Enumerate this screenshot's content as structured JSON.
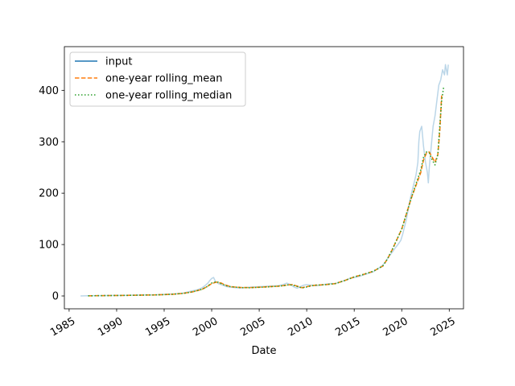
{
  "chart_data": {
    "type": "line",
    "title": "",
    "xlabel": "Date",
    "ylabel": "",
    "xlim": [
      1984.5,
      2026.5
    ],
    "ylim": [
      -25,
      485
    ],
    "x_ticks": [
      1985,
      1990,
      1995,
      2000,
      2005,
      2010,
      2015,
      2020,
      2025
    ],
    "x_tick_labels": [
      "1985",
      "1990",
      "1995",
      "2000",
      "2005",
      "2010",
      "2015",
      "2020",
      "2025"
    ],
    "y_ticks": [
      0,
      100,
      200,
      300,
      400
    ],
    "y_tick_labels": [
      "0",
      "100",
      "200",
      "300",
      "400"
    ],
    "grid": false,
    "legend_position": "top-left",
    "series": [
      {
        "name": "input",
        "color": "#1f77b4",
        "style": "solid",
        "x": [
          1986.2,
          1987,
          1988,
          1989,
          1990,
          1991,
          1992,
          1993,
          1994,
          1995,
          1996,
          1997,
          1998,
          1998.5,
          1999,
          1999.3,
          1999.6,
          1999.8,
          2000,
          2000.2,
          2000.4,
          2000.7,
          2001,
          2001.3,
          2001.6,
          2002,
          2002.5,
          2003,
          2003.5,
          2004,
          2005,
          2006,
          2007,
          2007.5,
          2007.9,
          2008.3,
          2008.7,
          2009,
          2009.3,
          2009.7,
          2010,
          2010.5,
          2011,
          2011.5,
          2012,
          2012.5,
          2013,
          2013.5,
          2014,
          2014.5,
          2015,
          2015.5,
          2016,
          2016.5,
          2017,
          2017.5,
          2018,
          2018.3,
          2018.7,
          2019,
          2019.3,
          2019.6,
          2019.9,
          2020.1,
          2020.3,
          2020.5,
          2020.7,
          2020.9,
          2021.1,
          2021.3,
          2021.5,
          2021.7,
          2021.8,
          2021.9,
          2022.1,
          2022.3,
          2022.5,
          2022.7,
          2022.8,
          2022.9,
          2023.1,
          2023.3,
          2023.5,
          2023.7,
          2023.9,
          2024.1,
          2024.3,
          2024.5,
          2024.6,
          2024.7,
          2024.8,
          2024.9
        ],
        "y": [
          0,
          0.5,
          0.6,
          0.8,
          1,
          1.2,
          1.5,
          2,
          1.9,
          3,
          4,
          5.5,
          10,
          12,
          16,
          20,
          25,
          30,
          34,
          36,
          28,
          24,
          22,
          20,
          18,
          17,
          16,
          15.5,
          16,
          17,
          18,
          19,
          20,
          22,
          25,
          22,
          17,
          15,
          18,
          21,
          22,
          21,
          20,
          21,
          23,
          24,
          24,
          27,
          30,
          34,
          36,
          38,
          41,
          44,
          47,
          53,
          60,
          67,
          78,
          85,
          93,
          100,
          108,
          120,
          135,
          150,
          170,
          190,
          205,
          220,
          235,
          260,
          300,
          320,
          330,
          290,
          260,
          240,
          220,
          250,
          290,
          330,
          350,
          380,
          410,
          420,
          440,
          430,
          450,
          440,
          430,
          450
        ]
      },
      {
        "name": "one-year rolling_mean",
        "color": "#ff7f0e",
        "style": "dashed",
        "x": [
          1987,
          1988,
          1989,
          1990,
          1991,
          1992,
          1993,
          1994,
          1995,
          1996,
          1997,
          1998,
          1999,
          1999.5,
          2000,
          2000.5,
          2001,
          2001.5,
          2002,
          2003,
          2004,
          2005,
          2006,
          2007,
          2007.5,
          2008,
          2008.5,
          2009,
          2009.5,
          2010,
          2010.5,
          2011,
          2012,
          2013,
          2014,
          2015,
          2016,
          2017,
          2018,
          2018.5,
          2019,
          2019.5,
          2020,
          2020.5,
          2021,
          2021.5,
          2022,
          2022.3,
          2022.6,
          2022.9,
          2023.2,
          2023.5,
          2023.8,
          2024,
          2024.2
        ],
        "y": [
          0.3,
          0.5,
          0.7,
          0.9,
          1.1,
          1.4,
          1.8,
          2,
          2.6,
          3.5,
          5,
          8,
          13,
          18,
          24,
          27,
          25,
          21,
          18,
          16.5,
          16.2,
          17,
          18,
          19,
          20,
          21.5,
          22,
          19,
          16,
          18,
          20,
          21,
          22,
          24,
          30,
          37,
          42,
          48,
          58,
          72,
          90,
          110,
          130,
          160,
          190,
          215,
          240,
          265,
          278,
          280,
          270,
          260,
          275,
          320,
          390
        ]
      },
      {
        "name": "one-year rolling_median",
        "color": "#2ca02c",
        "style": "dotted",
        "x": [
          1987,
          1988,
          1989,
          1990,
          1991,
          1992,
          1993,
          1994,
          1995,
          1996,
          1997,
          1998,
          1999,
          1999.5,
          2000,
          2000.5,
          2001,
          2001.5,
          2002,
          2003,
          2004,
          2005,
          2006,
          2007,
          2007.5,
          2008,
          2008.5,
          2009,
          2009.5,
          2010,
          2010.5,
          2011,
          2012,
          2013,
          2014,
          2015,
          2016,
          2017,
          2018,
          2018.5,
          2019,
          2019.5,
          2020,
          2020.5,
          2021,
          2021.5,
          2022,
          2022.3,
          2022.6,
          2022.9,
          2023.2,
          2023.5,
          2023.8,
          2024,
          2024.2,
          2024.4
        ],
        "y": [
          0.3,
          0.5,
          0.7,
          0.9,
          1.1,
          1.4,
          1.8,
          2,
          2.6,
          3.5,
          5,
          8,
          13,
          18,
          25,
          28,
          24,
          20,
          18,
          16.3,
          16,
          16.8,
          17.8,
          19,
          20,
          21.5,
          21.5,
          18.5,
          15.5,
          17.5,
          20,
          21,
          22,
          24,
          30,
          37,
          42,
          48,
          58,
          72,
          90,
          110,
          130,
          160,
          190,
          218,
          245,
          270,
          280,
          278,
          265,
          255,
          275,
          330,
          380,
          405
        ]
      }
    ]
  }
}
